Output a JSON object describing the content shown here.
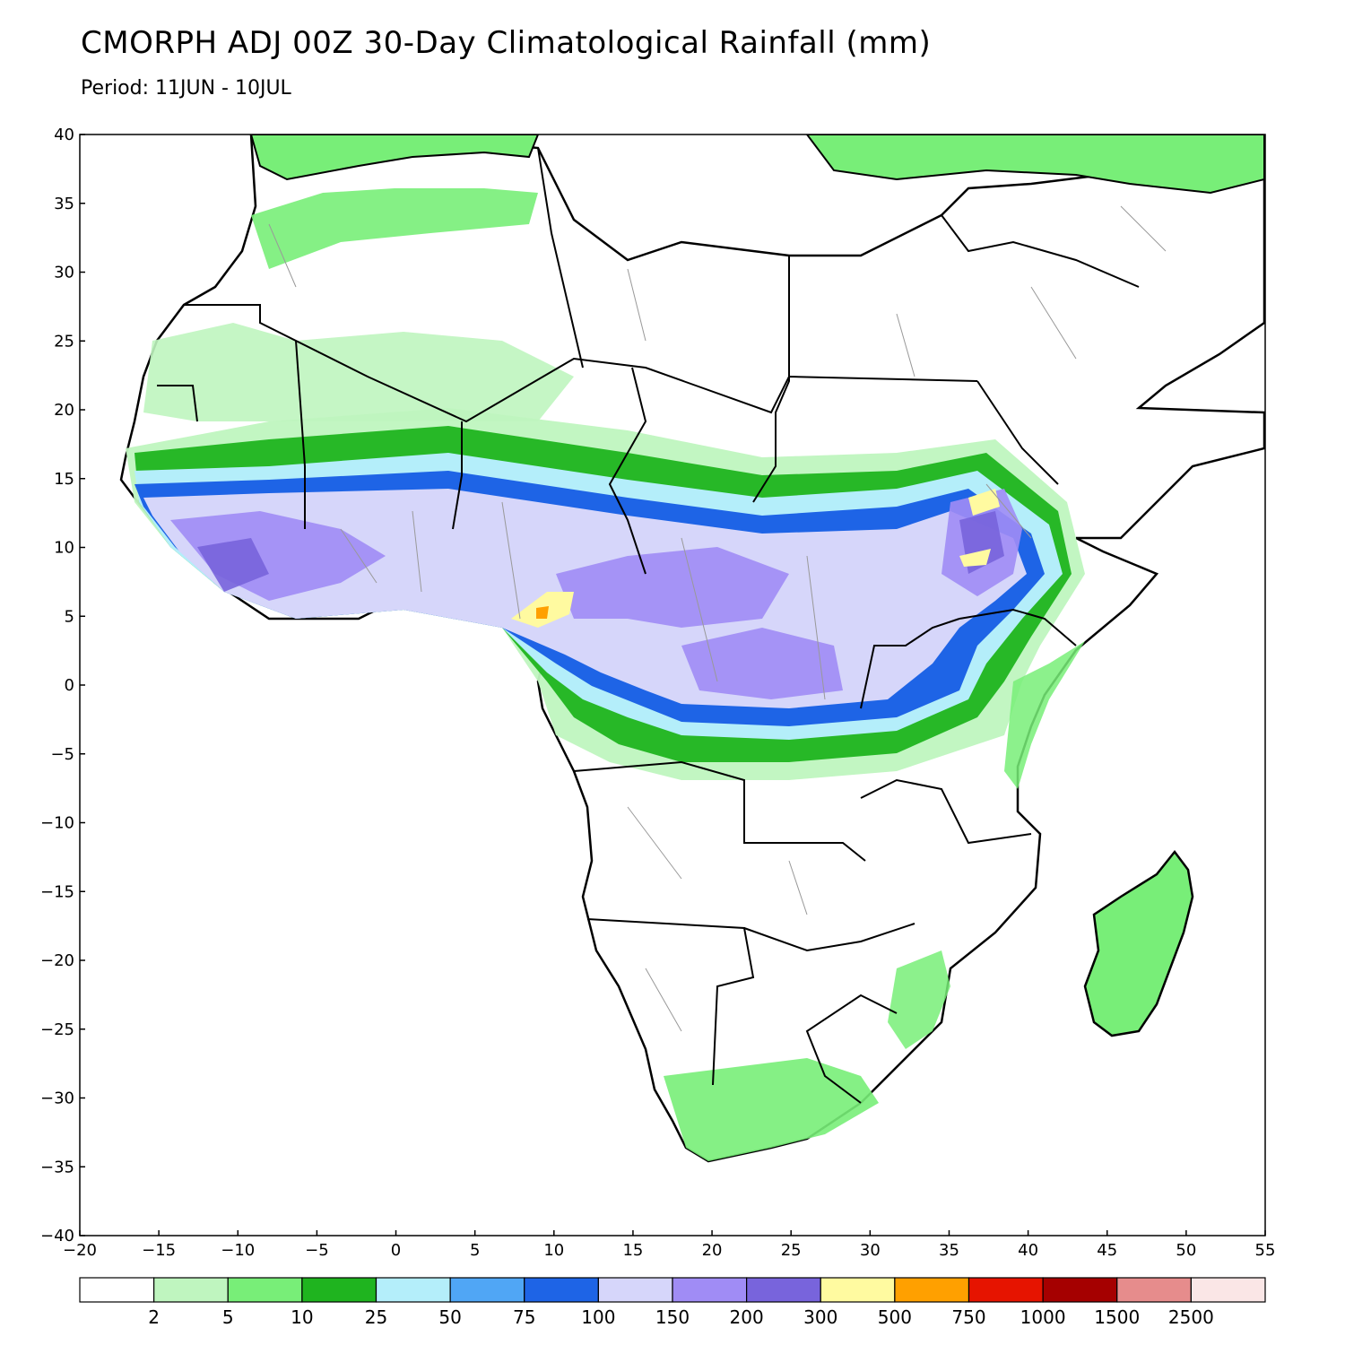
{
  "title": "CMORPH ADJ 00Z 30-Day Climatological Rainfall (mm)",
  "subtitle": "Period: 11JUN - 10JUL",
  "map": {
    "lon_range": [
      -20,
      55
    ],
    "lat_range": [
      -40,
      40
    ],
    "lon_ticks": [
      "−20",
      "−15",
      "−10",
      "−5",
      "0",
      "5",
      "10",
      "15",
      "20",
      "25",
      "30",
      "35",
      "40",
      "45",
      "50",
      "55"
    ],
    "lat_ticks": [
      "40",
      "35",
      "30",
      "25",
      "20",
      "15",
      "10",
      "5",
      "0",
      "−5",
      "−10",
      "−15",
      "−20",
      "−25",
      "−30",
      "−35",
      "−40"
    ],
    "ocean_color": "#ffffff",
    "land_border_color": "#000000",
    "admin_border_color": "#999999"
  },
  "legend": {
    "colors": [
      "#ffffff",
      "#bff5bf",
      "#78ee78",
      "#1fb41f",
      "#b4eefa",
      "#50a6f5",
      "#1e64e6",
      "#d6d6fa",
      "#a08cf5",
      "#7864dc",
      "#fffaa0",
      "#ffa000",
      "#e61400",
      "#a50000",
      "#e68c8c",
      "#fae6e6"
    ],
    "labels": [
      "2",
      "5",
      "10",
      "25",
      "50",
      "75",
      "100",
      "150",
      "200",
      "300",
      "500",
      "750",
      "1000",
      "1500",
      "2500"
    ]
  }
}
